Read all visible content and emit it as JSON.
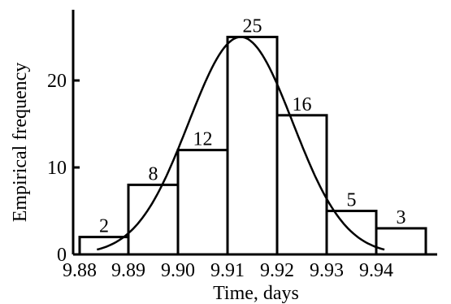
{
  "chart_data": {
    "type": "bar",
    "title": "",
    "xlabel": "Time, days",
    "ylabel": "Empirical frequency",
    "x_ticks": [
      "9.88",
      "9.89",
      "9.90",
      "9.91",
      "9.92",
      "9.93",
      "9.94"
    ],
    "y_ticks": [
      "0",
      "10",
      "20"
    ],
    "xlim": [
      9.8825,
      9.9435
    ],
    "ylim": [
      0,
      27
    ],
    "bins": [
      {
        "left": 9.8835,
        "right": 9.893,
        "value": 2
      },
      {
        "left": 9.893,
        "right": 9.903,
        "value": 8
      },
      {
        "left": 9.903,
        "right": 9.913,
        "value": 12
      },
      {
        "left": 9.913,
        "right": 9.923,
        "value": 25
      },
      {
        "left": 9.923,
        "right": 9.933,
        "value": 16
      },
      {
        "left": 9.933,
        "right": 9.943,
        "value": 5
      },
      {
        "left": 9.943,
        "right": 9.953,
        "value": 3
      }
    ],
    "bin_labels": [
      "2",
      "8",
      "12",
      "25",
      "16",
      "5",
      "3"
    ],
    "fit_curve": {
      "type": "normal",
      "mean": 9.9125,
      "std": 0.0105,
      "peak": 25
    }
  }
}
